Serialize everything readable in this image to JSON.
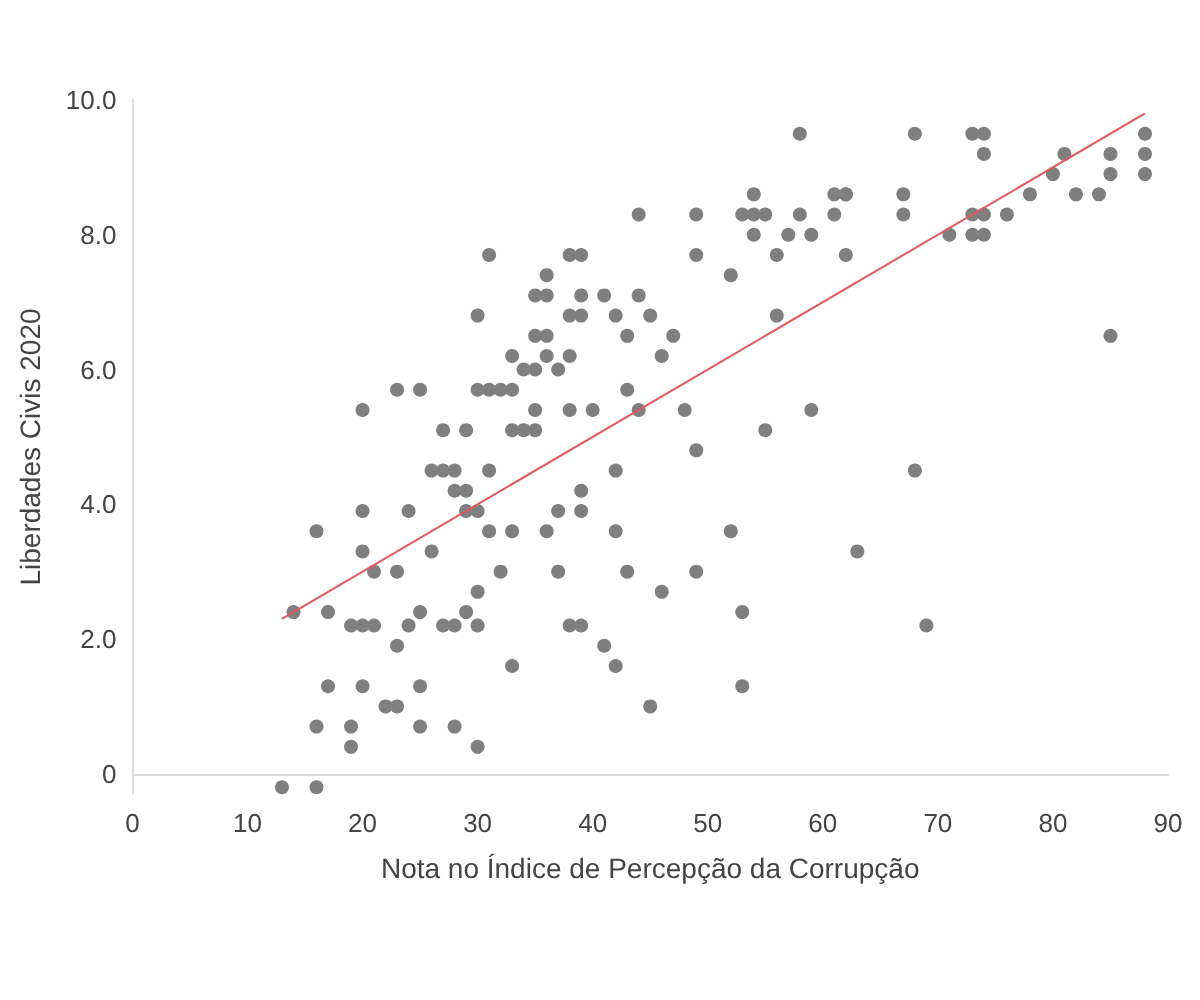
{
  "chart_data": {
    "type": "scatter",
    "xlabel": "Nota no Índice de Percepção da Corrupção",
    "ylabel": "Liberdades Civis 2020",
    "xlim": [
      0,
      90
    ],
    "xticks": [
      0,
      10,
      20,
      30,
      40,
      50,
      60,
      70,
      80,
      90
    ],
    "ylim": [
      -0.3,
      10
    ],
    "yticks": [
      {
        "value": 0,
        "label": "0"
      },
      {
        "value": 2,
        "label": "2.0"
      },
      {
        "value": 4,
        "label": "4.0"
      },
      {
        "value": 6,
        "label": "6.0"
      },
      {
        "value": 8,
        "label": "8.0"
      },
      {
        "value": 10,
        "label": "10.0"
      }
    ],
    "grid": false,
    "series": [
      {
        "marker": "circle",
        "color": "#7f7f7f",
        "x": [
          68,
          73,
          74,
          74,
          81,
          85,
          88,
          88,
          80,
          85,
          88,
          62,
          67,
          78,
          82,
          84,
          67,
          73,
          74,
          76,
          71,
          73,
          74,
          62,
          85,
          68,
          63,
          69,
          58,
          54,
          61,
          62,
          44,
          49,
          53,
          54,
          55,
          58,
          61,
          54,
          57,
          59,
          38,
          39,
          49,
          56,
          36,
          52,
          35,
          36,
          39,
          41,
          44,
          38,
          39,
          42,
          45,
          56,
          35,
          36,
          43,
          47,
          36,
          38,
          46,
          35,
          37,
          43,
          35,
          38,
          40,
          44,
          48,
          59,
          35,
          55,
          49,
          42,
          39,
          37,
          39,
          36,
          42,
          52,
          37,
          43,
          49,
          46,
          53,
          38,
          39,
          41,
          42,
          53,
          45,
          31,
          30,
          33,
          34,
          23,
          25,
          30,
          31,
          32,
          33,
          20,
          27,
          29,
          33,
          34,
          26,
          27,
          28,
          31,
          28,
          29,
          20,
          24,
          29,
          30,
          16,
          31,
          33,
          20,
          26,
          21,
          23,
          32,
          30,
          14,
          17,
          25,
          29,
          19,
          20,
          21,
          24,
          27,
          28,
          30,
          23,
          33,
          17,
          20,
          25,
          22,
          23,
          16,
          19,
          25,
          28,
          19,
          30,
          13,
          16
        ],
        "values": [
          9.5,
          9.5,
          9.5,
          9.2,
          9.2,
          9.2,
          9.5,
          9.2,
          8.9,
          8.9,
          8.9,
          8.6,
          8.6,
          8.6,
          8.6,
          8.6,
          8.3,
          8.3,
          8.3,
          8.3,
          8.0,
          8.0,
          8.0,
          7.7,
          6.5,
          4.5,
          3.3,
          2.2,
          9.5,
          8.6,
          8.6,
          8.6,
          8.3,
          8.3,
          8.3,
          8.3,
          8.3,
          8.3,
          8.3,
          8.0,
          8.0,
          8.0,
          7.7,
          7.7,
          7.7,
          7.7,
          7.4,
          7.4,
          7.1,
          7.1,
          7.1,
          7.1,
          7.1,
          6.8,
          6.8,
          6.8,
          6.8,
          6.8,
          6.5,
          6.5,
          6.5,
          6.5,
          6.2,
          6.2,
          6.2,
          6.0,
          6.0,
          5.7,
          5.4,
          5.4,
          5.4,
          5.4,
          5.4,
          5.4,
          5.1,
          5.1,
          4.8,
          4.5,
          4.2,
          3.9,
          3.9,
          3.6,
          3.6,
          3.6,
          3.0,
          3.0,
          3.0,
          2.7,
          2.4,
          2.2,
          2.2,
          1.9,
          1.6,
          1.3,
          1.0,
          7.7,
          6.8,
          6.2,
          6.0,
          5.7,
          5.7,
          5.7,
          5.7,
          5.7,
          5.7,
          5.4,
          5.1,
          5.1,
          5.1,
          5.1,
          4.5,
          4.5,
          4.5,
          4.5,
          4.2,
          4.2,
          3.9,
          3.9,
          3.9,
          3.9,
          3.6,
          3.6,
          3.6,
          3.3,
          3.3,
          3.0,
          3.0,
          3.0,
          2.7,
          2.4,
          2.4,
          2.4,
          2.4,
          2.2,
          2.2,
          2.2,
          2.2,
          2.2,
          2.2,
          2.2,
          1.9,
          1.6,
          1.3,
          1.3,
          1.3,
          1.0,
          1.0,
          0.7,
          0.7,
          0.7,
          0.7,
          0.4,
          0.4,
          -0.2,
          -0.2
        ]
      },
      {
        "type": "line",
        "marker": "none",
        "color": "#e05a5e",
        "x": [
          13,
          88
        ],
        "values": [
          2.3,
          9.8
        ]
      }
    ]
  }
}
